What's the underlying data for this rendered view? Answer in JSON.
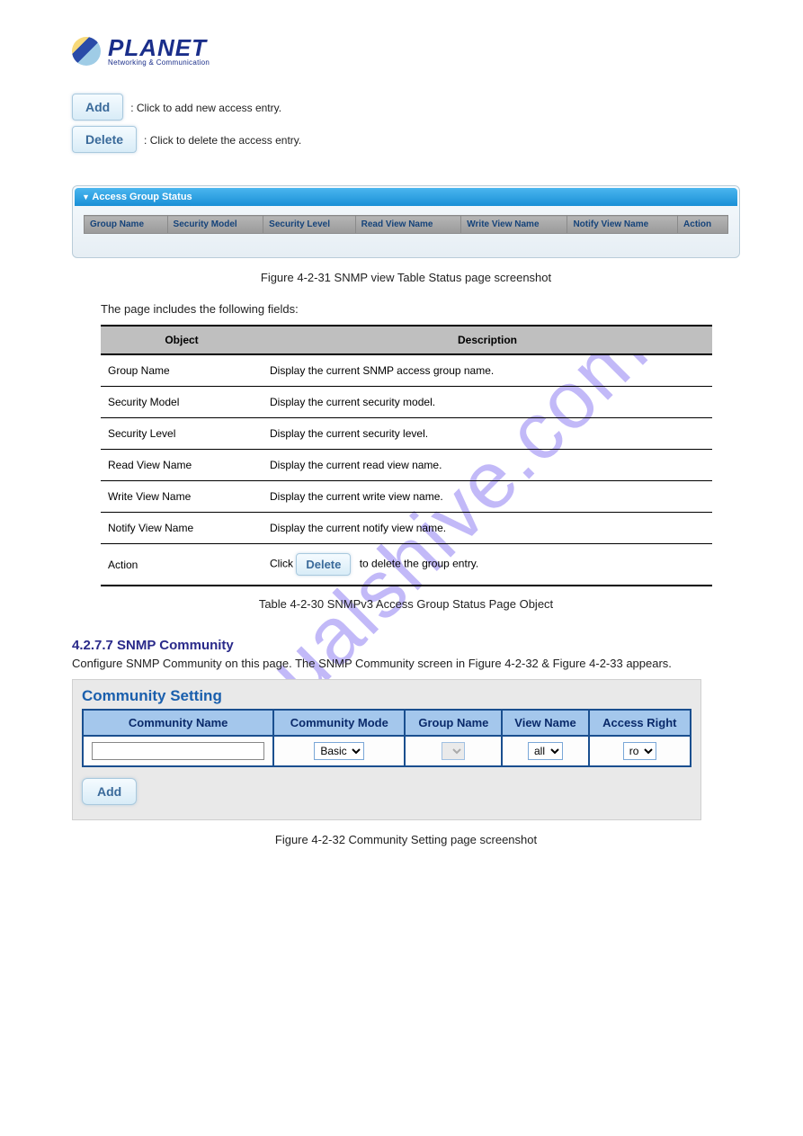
{
  "watermark": "manualshive.com",
  "logo": {
    "brand": "PLANET",
    "tagline": "Networking & Communication"
  },
  "buttons": {
    "add": {
      "label": "Add",
      "desc": ": Click to add new access entry."
    },
    "delete": {
      "label": "Delete",
      "desc": ": Click to delete the access entry."
    }
  },
  "accessGroupPanel": {
    "title": "Access Group Status",
    "columns": [
      "Group Name",
      "Security Model",
      "Security Level",
      "Read View Name",
      "Write View Name",
      "Notify View Name",
      "Action"
    ]
  },
  "figure1": "Figure 4-2-31 SNMP view Table Status page screenshot",
  "pageIncludes": "The page includes the following fields:",
  "objTable": {
    "headers": [
      "Object",
      "Description"
    ],
    "rows": [
      {
        "obj": "Group Name",
        "desc": "Display the current SNMP access group name."
      },
      {
        "obj": "Security Model",
        "desc": "Display the current security model."
      },
      {
        "obj": "Security Level",
        "desc": "Display the current security level."
      },
      {
        "obj": "Read View Name",
        "desc": "Display the current read view name."
      },
      {
        "obj": "Write View Name",
        "desc": "Display the current write view name."
      },
      {
        "obj": "Notify View Name",
        "desc": "Display the current notify view name."
      },
      {
        "obj": "Action",
        "desc_prefix": "Click",
        "desc_suffix": " to delete the group entry.",
        "btn": "Delete"
      }
    ]
  },
  "tableCaption": "Table 4-2-30 SNMPv3 Access Group Status Page Object",
  "section": {
    "num": "4.2.7.7 SNMP Community",
    "desc": "Configure SNMP Community on this page. The SNMP Community screen in Figure 4-2-32 & Figure 4-2-33 appears."
  },
  "commPanel": {
    "title": "Community Setting",
    "headers": [
      "Community Name",
      "Community Mode",
      "Group Name",
      "View Name",
      "Access Right"
    ],
    "row": {
      "community_name": "",
      "community_mode": {
        "selected": "Basic",
        "options": [
          "Basic"
        ]
      },
      "group_name": {
        "selected": "",
        "options": [
          ""
        ]
      },
      "view_name": {
        "selected": "all",
        "options": [
          "all"
        ]
      },
      "access_right": {
        "selected": "ro",
        "options": [
          "ro"
        ]
      }
    },
    "add_label": "Add"
  },
  "figure2": "Figure 4-2-32 Community Setting page screenshot",
  "colors": {
    "brand_blue": "#1a2e8a",
    "panel_header_grad_top": "#4ab6ef",
    "panel_header_grad_bot": "#1a8fd6",
    "status_th_bg_top": "#b5b5b5",
    "status_th_bg_bot": "#9a9a9a",
    "status_th_text": "#15437a",
    "obj_th_bg": "#bfbfbf",
    "comm_th_bg": "#a4c7ec",
    "comm_border": "#1a4f8f",
    "btn_text": "#3a6a9a",
    "watermark": "rgba(120,100,240,0.45)"
  }
}
